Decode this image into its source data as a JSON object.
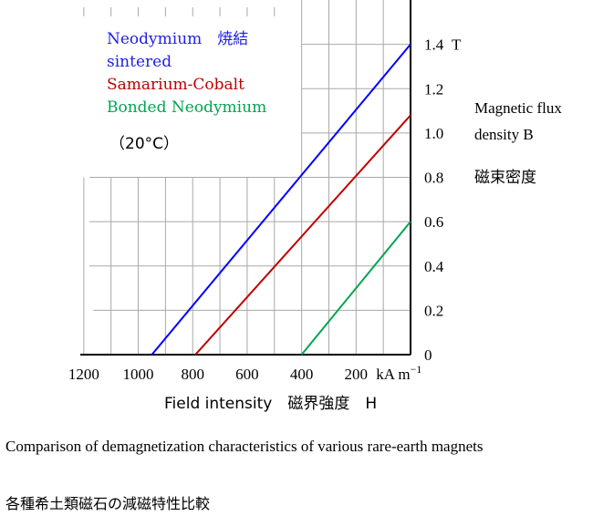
{
  "chart_data": {
    "type": "line",
    "xlabel": "Field intensity　磁界強度　H",
    "ylabel": [
      "Magnetic flux",
      "density B",
      "磁束密度"
    ],
    "x_unit_label": "kA m",
    "x_unit_exp": "−1",
    "y_unit_label": "T",
    "x_ticks": [
      {
        "value": 1200,
        "label": "1200"
      },
      {
        "value": 1000,
        "label": "1000"
      },
      {
        "value": 800,
        "label": "800"
      },
      {
        "value": 600,
        "label": "600"
      },
      {
        "value": 400,
        "label": "400"
      },
      {
        "value": 200,
        "label": "200"
      }
    ],
    "y_ticks": [
      {
        "value": 0,
        "label": "0"
      },
      {
        "value": 0.2,
        "label": "0.2"
      },
      {
        "value": 0.4,
        "label": "0.4"
      },
      {
        "value": 0.6,
        "label": "0.6"
      },
      {
        "value": 0.8,
        "label": "0.8"
      },
      {
        "value": 1.0,
        "label": "1.0"
      },
      {
        "value": 1.2,
        "label": "1.2"
      },
      {
        "value": 1.4,
        "label": "1.4"
      }
    ],
    "xlim": [
      1300,
      0
    ],
    "ylim": [
      0,
      1.6
    ],
    "grid": true,
    "legend_position": "top-left",
    "series": [
      {
        "name": "Neodymium 焼結 sintered",
        "color": "#0000ff",
        "x": [
          950,
          0
        ],
        "y": [
          0,
          1.4
        ]
      },
      {
        "name": "Samarium-Cobalt",
        "color": "#c00000",
        "x": [
          790,
          0
        ],
        "y": [
          0,
          1.08
        ]
      },
      {
        "name": "Bonded Neodymium",
        "color": "#00a550",
        "x": [
          400,
          0
        ],
        "y": [
          0,
          0.6
        ]
      }
    ],
    "legend": [
      {
        "text": "Neodymium　焼結",
        "color": "#2020e0"
      },
      {
        "text": "sintered",
        "color": "#2020e0"
      },
      {
        "text": "Samarium-Cobalt",
        "color": "#c00000"
      },
      {
        "text": "Bonded Neodymium",
        "color": "#00a550"
      }
    ],
    "annotation": "（20°C）"
  },
  "caption": {
    "en": "Comparison of demagnetization characteristics of various rare-earth magnets",
    "ja": "各種希土類磁石の減磁特性比較"
  }
}
